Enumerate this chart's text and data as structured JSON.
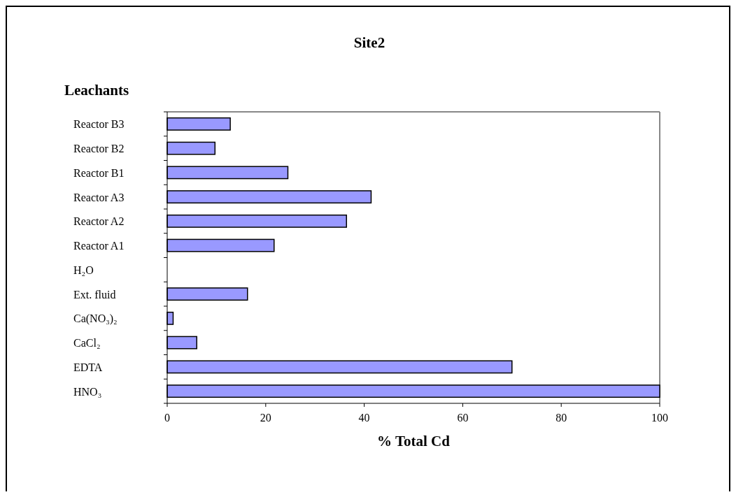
{
  "chart_data": {
    "type": "bar",
    "orientation": "horizontal",
    "title": "Site2",
    "ylabel": "Leachants",
    "xlabel": "% Total Cd",
    "categories": [
      "Reactor B3",
      "Reactor B2",
      "Reactor B1",
      "Reactor A3",
      "Reactor A2",
      "Reactor A1",
      "H₂O",
      "Ext. fluid",
      "Ca(NO₃)₂",
      "CaCl₂",
      "EDTA",
      "HNO₃"
    ],
    "values": [
      12.8,
      9.7,
      24.5,
      41.4,
      36.4,
      21.7,
      0,
      16.3,
      1.2,
      6.0,
      70,
      100
    ],
    "color": "#9999ff",
    "xlim": [
      0,
      100
    ],
    "xticks": [
      0,
      20,
      40,
      60,
      80,
      100
    ],
    "grid": false
  }
}
